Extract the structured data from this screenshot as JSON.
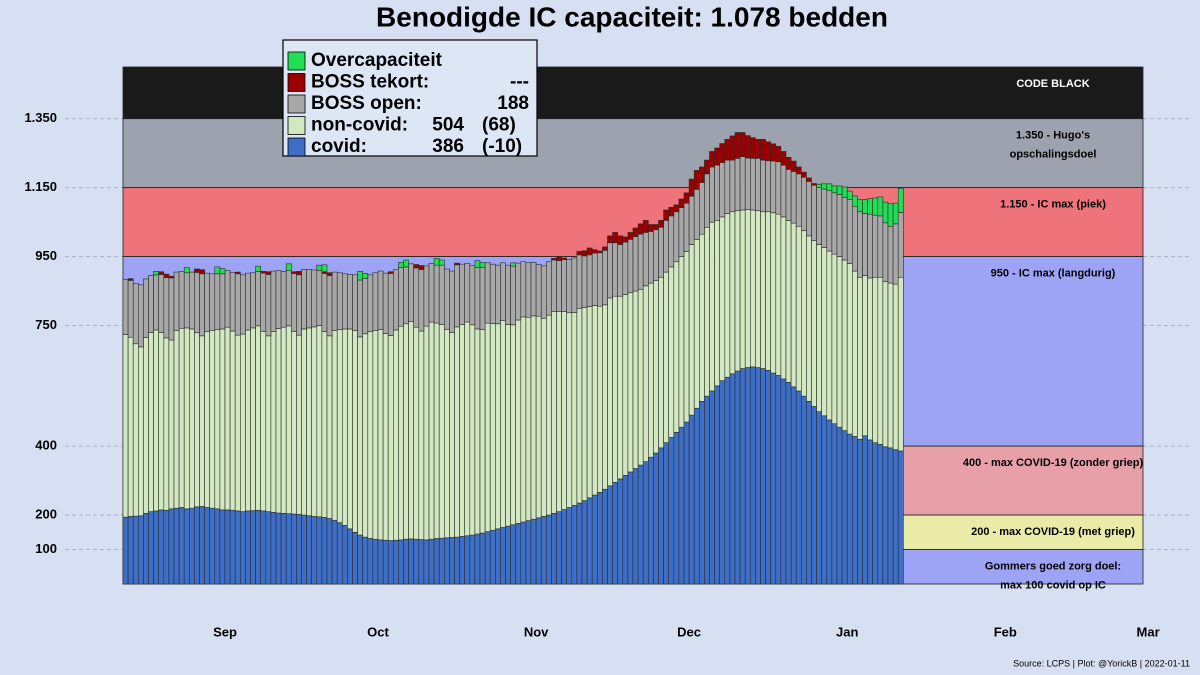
{
  "chart_data": {
    "type": "bar",
    "stacked": true,
    "title": "Benodigde IC capaciteit: 1.078 bedden",
    "source": "Source: LCPS | Plot: @YorickB |  2022-01-11",
    "ylim": [
      0,
      1500
    ],
    "yticks": [
      100,
      200,
      400,
      750,
      950,
      {
        "value": 1150,
        "label": "1.150"
      },
      {
        "value": 1350,
        "label": "1.350"
      }
    ],
    "xlim": [
      0,
      200
    ],
    "xticks": [
      {
        "value": 20,
        "label": "Sep"
      },
      {
        "value": 50,
        "label": "Oct"
      },
      {
        "value": 81,
        "label": "Nov"
      },
      {
        "value": 111,
        "label": "Dec"
      },
      {
        "value": 142,
        "label": "Jan"
      },
      {
        "value": 173,
        "label": "Feb"
      },
      {
        "value": 201,
        "label": "Mar"
      }
    ],
    "grid": true,
    "bands": [
      {
        "from": 1350,
        "to": 1500,
        "color": "#1a1a1a",
        "label_color": "#ffffff",
        "label": [
          "CODE BLACK"
        ]
      },
      {
        "from": 1150,
        "to": 1350,
        "color": "#9da3ae",
        "label_color": "#000000",
        "label": [
          "1.350 - Hugo's",
          "opschalingsdoel"
        ]
      },
      {
        "from": 950,
        "to": 1150,
        "color": "#ef737a",
        "label_color": "#000000",
        "label": [
          "1.150 - IC max (piek)"
        ]
      },
      {
        "from": 400,
        "to": 950,
        "color": "#9ea4f5",
        "label_color": "#000000",
        "label": [
          "950 - IC max (langdurig)"
        ]
      },
      {
        "from": 200,
        "to": 400,
        "color": "#e8a0a8",
        "label_color": "#000000",
        "label": [
          "400 - max COVID-19 (zonder griep)"
        ]
      },
      {
        "from": 100,
        "to": 200,
        "color": "#ebeba8",
        "label_color": "#000000",
        "label": [
          "200 - max COVID-19 (met griep)"
        ]
      },
      {
        "from": 0,
        "to": 100,
        "color": "#9ea4f5",
        "label_color": "#000000",
        "label": [
          "Gommers goed zorg doel:",
          "max 100 covid op IC"
        ]
      }
    ],
    "series": [
      {
        "name": "covid:",
        "color": "#3d6fc8",
        "legend_value": 386,
        "legend_change": "(-10)",
        "values": [
          194,
          196,
          197,
          198,
          205,
          210,
          212,
          215,
          214,
          218,
          220,
          222,
          218,
          220,
          224,
          225,
          222,
          220,
          218,
          215,
          215,
          214,
          212,
          210,
          212,
          213,
          214,
          212,
          210,
          208,
          206,
          205,
          204,
          203,
          202,
          200,
          198,
          196,
          195,
          193,
          190,
          185,
          178,
          170,
          160,
          150,
          142,
          136,
          132,
          130,
          128,
          127,
          126,
          127,
          128,
          130,
          131,
          130,
          129,
          128,
          130,
          132,
          133,
          134,
          135,
          136,
          138,
          140,
          142,
          145,
          148,
          152,
          156,
          160,
          164,
          168,
          172,
          176,
          180,
          184,
          188,
          192,
          196,
          200,
          205,
          210,
          216,
          222,
          228,
          235,
          242,
          250,
          258,
          266,
          275,
          285,
          295,
          305,
          315,
          325,
          335,
          345,
          355,
          368,
          380,
          395,
          410,
          425,
          440,
          455,
          470,
          490,
          510,
          530,
          545,
          560,
          575,
          590,
          600,
          610,
          618,
          625,
          628,
          630,
          628,
          625,
          620,
          612,
          605,
          595,
          585,
          572,
          560,
          545,
          530,
          515,
          500,
          488,
          476,
          465,
          455,
          445,
          435,
          428,
          420,
          430,
          418,
          410,
          405,
          398,
          395,
          390,
          386
        ]
      },
      {
        "name": "non-covid:",
        "color": "#d2e8c0",
        "legend_value": 504,
        "legend_change": "(68)",
        "values": [
          530,
          520,
          500,
          490,
          510,
          520,
          525,
          515,
          500,
          490,
          515,
          520,
          525,
          520,
          505,
          495,
          510,
          515,
          520,
          525,
          530,
          520,
          510,
          515,
          525,
          530,
          535,
          520,
          510,
          525,
          535,
          540,
          545,
          530,
          520,
          540,
          545,
          550,
          555,
          540,
          530,
          550,
          560,
          570,
          580,
          585,
          575,
          590,
          600,
          605,
          610,
          600,
          595,
          610,
          620,
          625,
          630,
          615,
          605,
          620,
          630,
          625,
          620,
          605,
          595,
          610,
          615,
          620,
          610,
          595,
          590,
          605,
          600,
          595,
          600,
          585,
          580,
          590,
          595,
          590,
          590,
          585,
          575,
          580,
          585,
          580,
          575,
          565,
          560,
          565,
          560,
          555,
          550,
          540,
          535,
          545,
          540,
          530,
          525,
          520,
          515,
          510,
          510,
          505,
          500,
          495,
          495,
          495,
          495,
          495,
          495,
          495,
          490,
          485,
          490,
          490,
          480,
          475,
          475,
          470,
          465,
          460,
          458,
          455,
          455,
          455,
          460,
          465,
          468,
          470,
          470,
          475,
          478,
          480,
          480,
          482,
          485,
          488,
          490,
          492,
          495,
          495,
          495,
          480,
          470,
          465,
          470,
          480,
          485,
          480,
          478,
          480,
          504
        ]
      },
      {
        "name": "BOSS open:",
        "color": "#a8a8a8",
        "legend_value": 188,
        "values": [
          160,
          165,
          175,
          180,
          170,
          165,
          160,
          168,
          175,
          180,
          170,
          165,
          160,
          165,
          175,
          180,
          170,
          165,
          162,
          160,
          165,
          170,
          178,
          172,
          165,
          160,
          158,
          170,
          178,
          175,
          168,
          162,
          160,
          168,
          175,
          172,
          170,
          165,
          160,
          168,
          175,
          170,
          165,
          160,
          158,
          162,
          165,
          160,
          165,
          168,
          170,
          175,
          180,
          175,
          170,
          165,
          168,
          172,
          178,
          175,
          170,
          168,
          172,
          175,
          178,
          180,
          175,
          170,
          172,
          178,
          180,
          175,
          172,
          170,
          168,
          172,
          170,
          165,
          160,
          158,
          155,
          150,
          152,
          155,
          150,
          148,
          150,
          155,
          158,
          155,
          150,
          150,
          152,
          155,
          158,
          160,
          155,
          150,
          152,
          155,
          158,
          160,
          155,
          150,
          148,
          145,
          150,
          148,
          145,
          142,
          140,
          140,
          145,
          150,
          155,
          160,
          160,
          158,
          155,
          150,
          152,
          155,
          150,
          150,
          152,
          150,
          148,
          150,
          152,
          150,
          148,
          150,
          152,
          155,
          158,
          160,
          165,
          170,
          175,
          178,
          180,
          182,
          185,
          188,
          190,
          180,
          185,
          180,
          178,
          170,
          165,
          175,
          188
        ]
      },
      {
        "name": "BOSS tekort:",
        "color": "#9b0000",
        "legend_value": "---",
        "values": [
          0,
          5,
          0,
          0,
          0,
          0,
          0,
          8,
          10,
          5,
          0,
          0,
          0,
          0,
          10,
          12,
          0,
          0,
          0,
          0,
          0,
          0,
          5,
          0,
          0,
          0,
          0,
          5,
          8,
          0,
          0,
          0,
          0,
          5,
          10,
          0,
          0,
          0,
          0,
          5,
          8,
          0,
          0,
          0,
          0,
          0,
          0,
          0,
          0,
          0,
          0,
          0,
          5,
          0,
          0,
          0,
          0,
          10,
          12,
          0,
          0,
          0,
          0,
          0,
          0,
          5,
          0,
          0,
          0,
          0,
          0,
          0,
          0,
          0,
          0,
          0,
          0,
          0,
          0,
          0,
          0,
          0,
          0,
          0,
          5,
          10,
          5,
          0,
          0,
          10,
          15,
          20,
          10,
          5,
          10,
          20,
          30,
          25,
          15,
          20,
          25,
          30,
          35,
          20,
          15,
          20,
          30,
          25,
          20,
          25,
          30,
          50,
          55,
          45,
          40,
          45,
          50,
          55,
          60,
          70,
          75,
          70,
          65,
          60,
          55,
          60,
          55,
          50,
          45,
          40,
          35,
          30,
          20,
          15,
          10,
          5,
          0,
          0,
          0,
          0,
          0,
          0,
          0,
          0,
          0,
          0,
          0,
          0,
          0,
          0,
          0,
          0,
          0
        ]
      },
      {
        "name": "Overcapaciteit",
        "color": "#22dd55",
        "values": [
          0,
          0,
          0,
          0,
          0,
          0,
          10,
          0,
          0,
          0,
          0,
          0,
          15,
          0,
          0,
          0,
          0,
          0,
          20,
          15,
          0,
          0,
          0,
          0,
          0,
          0,
          15,
          0,
          0,
          0,
          0,
          0,
          20,
          0,
          0,
          0,
          0,
          0,
          15,
          20,
          0,
          0,
          0,
          0,
          0,
          0,
          25,
          15,
          0,
          0,
          0,
          0,
          0,
          0,
          15,
          20,
          0,
          0,
          0,
          0,
          0,
          20,
          15,
          0,
          0,
          0,
          0,
          0,
          0,
          20,
          15,
          0,
          0,
          0,
          0,
          0,
          10,
          0,
          0,
          0,
          0,
          0,
          0,
          0,
          0,
          0,
          0,
          0,
          0,
          0,
          0,
          0,
          0,
          0,
          0,
          0,
          0,
          0,
          0,
          0,
          0,
          0,
          0,
          0,
          0,
          0,
          0,
          0,
          0,
          0,
          0,
          0,
          0,
          0,
          0,
          0,
          0,
          0,
          0,
          0,
          0,
          0,
          0,
          0,
          0,
          0,
          0,
          0,
          0,
          0,
          0,
          0,
          0,
          0,
          0,
          0,
          10,
          15,
          20,
          20,
          25,
          30,
          25,
          30,
          35,
          40,
          45,
          50,
          55,
          60,
          65,
          60,
          70
        ]
      }
    ]
  }
}
